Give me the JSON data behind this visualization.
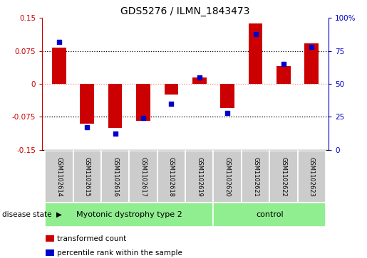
{
  "title": "GDS5276 / ILMN_1843473",
  "samples": [
    "GSM1102614",
    "GSM1102615",
    "GSM1102616",
    "GSM1102617",
    "GSM1102618",
    "GSM1102619",
    "GSM1102620",
    "GSM1102621",
    "GSM1102622",
    "GSM1102623"
  ],
  "red_values": [
    0.083,
    -0.09,
    -0.1,
    -0.085,
    -0.025,
    0.015,
    -0.055,
    0.138,
    0.04,
    0.093
  ],
  "blue_values": [
    82,
    17,
    12,
    24,
    35,
    55,
    28,
    88,
    65,
    78
  ],
  "groups": [
    {
      "label": "Myotonic dystrophy type 2",
      "start": 0,
      "end": 6,
      "color": "#90EE90"
    },
    {
      "label": "control",
      "start": 6,
      "end": 10,
      "color": "#90EE90"
    }
  ],
  "ylim_left": [
    -0.15,
    0.15
  ],
  "ylim_right": [
    0,
    100
  ],
  "yticks_left": [
    -0.15,
    -0.075,
    0,
    0.075,
    0.15
  ],
  "yticks_right": [
    0,
    25,
    50,
    75,
    100
  ],
  "bar_width": 0.5,
  "red_color": "#CC0000",
  "blue_color": "#0000CC",
  "bg_color": "#FFFFFF",
  "plot_bg_color": "#FFFFFF",
  "zero_line_color": "#FF8888",
  "sample_bg_color": "#CCCCCC",
  "group_bg_color": "#90EE90",
  "disease_state_label": "disease state",
  "legend_items": [
    {
      "label": "transformed count",
      "color": "#CC0000"
    },
    {
      "label": "percentile rank within the sample",
      "color": "#0000CC"
    }
  ]
}
